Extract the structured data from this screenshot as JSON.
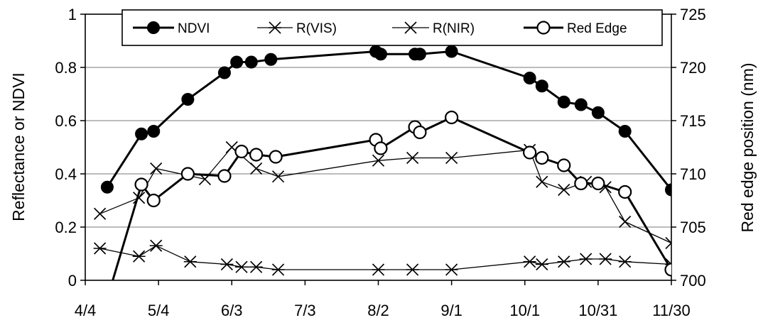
{
  "chart_data": {
    "type": "line",
    "title": "",
    "xlabel": "",
    "ylabel": "Reflectance or NDVI",
    "y2label": "Red edge position (nm)",
    "xticks": [
      "4/4",
      "5/4",
      "6/3",
      "7/3",
      "8/2",
      "9/1",
      "10/1",
      "10/31",
      "11/30"
    ],
    "xlim": [
      "4/4",
      "11/30"
    ],
    "ylim": [
      0,
      1
    ],
    "yticks": [
      "0",
      "0.2",
      "0.4",
      "0.6",
      "0.8",
      "1"
    ],
    "y2lim": [
      700,
      725
    ],
    "y2ticks": [
      "700",
      "705",
      "710",
      "715",
      "720",
      "725"
    ],
    "grid": "horizontal",
    "legend_position": "top",
    "series": [
      {
        "name": "NDVI",
        "axis": "left",
        "marker": "filled-circle",
        "line": "thick",
        "x": [
          "4/13",
          "4/27",
          "5/2",
          "5/16",
          "5/31",
          "6/5",
          "6/11",
          "6/19",
          "8/1",
          "8/3",
          "8/17",
          "8/19",
          "9/1",
          "10/3",
          "10/8",
          "10/17",
          "10/24",
          "10/31",
          "11/11",
          "11/30"
        ],
        "values": [
          0.35,
          0.55,
          0.56,
          0.68,
          0.78,
          0.82,
          0.82,
          0.83,
          0.86,
          0.85,
          0.85,
          0.85,
          0.86,
          0.76,
          0.73,
          0.67,
          0.66,
          0.63,
          0.56,
          0.34
        ]
      },
      {
        "name": "R(VIS)",
        "axis": "left",
        "marker": "asterisk",
        "line": "thin",
        "x": [
          "4/10",
          "4/26",
          "5/3",
          "5/17",
          "6/1",
          "6/7",
          "6/13",
          "6/22",
          "8/2",
          "8/16",
          "9/1",
          "10/3",
          "10/8",
          "10/17",
          "10/26",
          "11/3",
          "11/11",
          "11/30"
        ],
        "values": [
          0.12,
          0.09,
          0.13,
          0.07,
          0.06,
          0.05,
          0.05,
          0.04,
          0.04,
          0.04,
          0.04,
          0.07,
          0.06,
          0.07,
          0.08,
          0.08,
          0.07,
          0.06
        ]
      },
      {
        "name": "R(NIR)",
        "axis": "left",
        "marker": "x",
        "line": "thin",
        "x": [
          "4/10",
          "4/26",
          "5/3",
          "5/23",
          "6/3",
          "6/13",
          "6/22",
          "8/2",
          "8/16",
          "9/1",
          "10/3",
          "10/8",
          "10/17",
          "10/26",
          "11/3",
          "11/11",
          "11/30"
        ],
        "values": [
          0.25,
          0.31,
          0.42,
          0.38,
          0.5,
          0.42,
          0.39,
          0.45,
          0.46,
          0.46,
          0.49,
          0.37,
          0.34,
          0.37,
          0.35,
          0.22,
          0.14
        ]
      },
      {
        "name": "Red Edge",
        "axis": "right",
        "marker": "open-circle",
        "line": "thick",
        "x": [
          "4/12",
          "4/27",
          "5/2",
          "5/16",
          "5/31",
          "6/7",
          "6/13",
          "6/21",
          "8/1",
          "8/3",
          "8/17",
          "8/19",
          "9/1",
          "10/3",
          "10/8",
          "10/17",
          "10/24",
          "10/31",
          "11/11",
          "11/30"
        ],
        "values": [
          697.5,
          709,
          707.5,
          710,
          709.8,
          712.1,
          711.8,
          711.6,
          713.2,
          712.4,
          714.4,
          713.9,
          715.3,
          712,
          711.5,
          710.8,
          709.1,
          709.1,
          708.3,
          701
        ]
      }
    ]
  }
}
